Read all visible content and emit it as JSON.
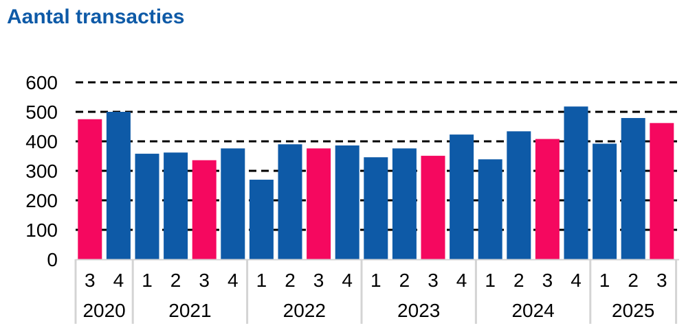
{
  "chart_data": {
    "type": "bar",
    "title": "Aantal transacties",
    "xlabel": "",
    "ylabel": "",
    "ylim": [
      0,
      600
    ],
    "yticks": [
      0,
      100,
      200,
      300,
      400,
      500,
      600
    ],
    "grid": "dashed horizontal",
    "years": [
      {
        "label": "2020",
        "quarters": [
          "3",
          "4"
        ]
      },
      {
        "label": "2021",
        "quarters": [
          "1",
          "2",
          "3",
          "4"
        ]
      },
      {
        "label": "2022",
        "quarters": [
          "1",
          "2",
          "3",
          "4"
        ]
      },
      {
        "label": "2023",
        "quarters": [
          "1",
          "2",
          "3",
          "4"
        ]
      },
      {
        "label": "2024",
        "quarters": [
          "1",
          "2",
          "3",
          "4"
        ]
      },
      {
        "label": "2025",
        "quarters": [
          "1",
          "2",
          "3"
        ]
      }
    ],
    "values": [
      475,
      500,
      358,
      362,
      336,
      376,
      270,
      390,
      376,
      386,
      346,
      376,
      351,
      423,
      339,
      434,
      408,
      518,
      392,
      479,
      462
    ],
    "highlight": [
      true,
      false,
      false,
      false,
      true,
      false,
      false,
      false,
      true,
      false,
      false,
      false,
      true,
      false,
      false,
      false,
      true,
      false,
      false,
      false,
      true
    ],
    "colors": {
      "default": "#0e5aa7",
      "highlight": "#f5085f",
      "title": "#0e5aa7",
      "separator": "#d4d4d4"
    }
  }
}
